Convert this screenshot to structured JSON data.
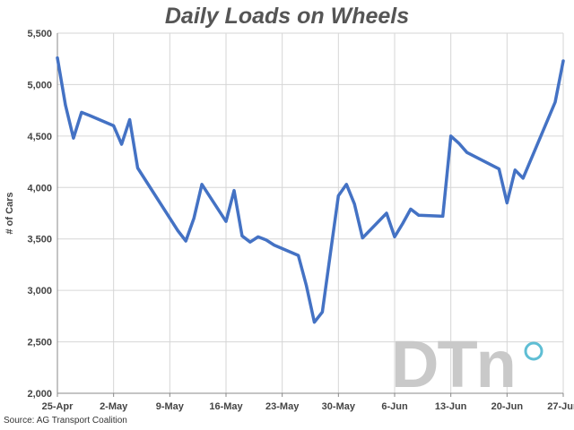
{
  "chart_data": {
    "type": "line",
    "title": "Daily Loads on Wheels",
    "xlabel": "",
    "ylabel": "# of Cars",
    "ylim": [
      2000,
      5500
    ],
    "yticks": [
      2000,
      2500,
      3000,
      3500,
      4000,
      4500,
      5000,
      5500
    ],
    "ytick_labels": [
      "2,000",
      "2,500",
      "3,000",
      "3,500",
      "4,000",
      "4,500",
      "5,000",
      "5,500"
    ],
    "xlim": [
      0,
      63
    ],
    "xticks": [
      0,
      7,
      14,
      21,
      28,
      35,
      42,
      49,
      56,
      63
    ],
    "xtick_labels": [
      "25-Apr",
      "2-May",
      "9-May",
      "16-May",
      "23-May",
      "30-May",
      "6-Jun",
      "13-Jun",
      "20-Jun",
      "27-Jun"
    ],
    "grid": true,
    "line_color": "#4472c4",
    "series": [
      {
        "name": "",
        "x": [
          0,
          1,
          2,
          3,
          4,
          7,
          8,
          9,
          10,
          15,
          16,
          17,
          18,
          21,
          22,
          23,
          24,
          25,
          26,
          27,
          30,
          31,
          32,
          33,
          34,
          35,
          36,
          37,
          38,
          41,
          42,
          43,
          44,
          45,
          48,
          49,
          50,
          51,
          55,
          56,
          57,
          58,
          62,
          63
        ],
        "values": [
          5260,
          4800,
          4480,
          4730,
          4700,
          4600,
          4420,
          4660,
          4190,
          3580,
          3480,
          3700,
          4030,
          3670,
          3970,
          3530,
          3470,
          3520,
          3490,
          3440,
          3340,
          3050,
          2690,
          2790,
          3360,
          3920,
          4030,
          3840,
          3510,
          3750,
          3520,
          3650,
          3790,
          3730,
          3720,
          4500,
          4430,
          4340,
          4180,
          3850,
          4170,
          4090,
          4830,
          5230
        ]
      }
    ]
  },
  "source": "Source: AG Transport Coalition",
  "watermark": {
    "text": "DTn",
    "color": "#c9c9c9",
    "accent": "#2aa8c6"
  }
}
